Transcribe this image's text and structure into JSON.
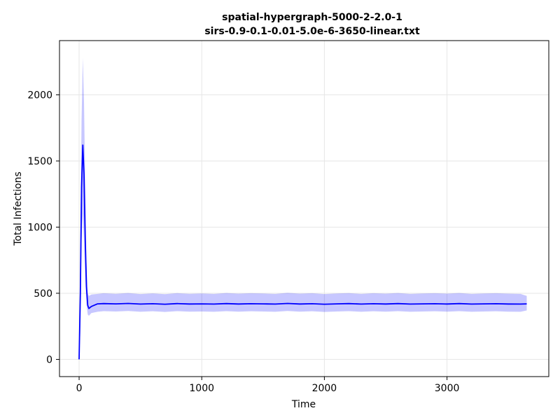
{
  "chart_data": {
    "type": "line",
    "title": "spatial-hypergraph-5000-2-2.0-1",
    "subtitle": "sirs-0.9-0.1-0.01-5.0e-6-3650-linear.txt",
    "xlabel": "Time",
    "ylabel": "Total Infections",
    "xlim": [
      -160,
      3830
    ],
    "ylim": [
      -130,
      2410
    ],
    "xticks": [
      0,
      1000,
      2000,
      3000
    ],
    "yticks": [
      0,
      500,
      1000,
      1500,
      2000
    ],
    "grid": true,
    "legend": "none",
    "colors": {
      "line": "#0000ff",
      "band": "#0000ff",
      "grid": "#e6e6e6"
    },
    "series": [
      {
        "kind": "line",
        "x": [
          0,
          10,
          20,
          30,
          40,
          50,
          60,
          70,
          80,
          100,
          150,
          200,
          300,
          400,
          500,
          600,
          700,
          800,
          900,
          1000,
          1100,
          1200,
          1300,
          1400,
          1500,
          1600,
          1700,
          1800,
          1900,
          2000,
          2100,
          2200,
          2300,
          2400,
          2500,
          2600,
          2700,
          2800,
          2900,
          3000,
          3100,
          3200,
          3300,
          3400,
          3500,
          3600,
          3650
        ],
        "y": [
          0,
          500,
          1300,
          1620,
          1400,
          900,
          550,
          410,
          385,
          400,
          420,
          422,
          420,
          423,
          418,
          421,
          417,
          422,
          419,
          420,
          418,
          422,
          419,
          421,
          420,
          418,
          423,
          419,
          421,
          417,
          420,
          422,
          418,
          421,
          419,
          422,
          418,
          420,
          421,
          419,
          422,
          418,
          420,
          421,
          419,
          418,
          420
        ]
      },
      {
        "kind": "band",
        "x": [
          0,
          10,
          20,
          30,
          40,
          50,
          60,
          70,
          80,
          100,
          150,
          200,
          300,
          400,
          500,
          600,
          700,
          800,
          900,
          1000,
          1100,
          1200,
          1300,
          1400,
          1500,
          1600,
          1700,
          1800,
          1900,
          2000,
          2100,
          2200,
          2300,
          2400,
          2500,
          2600,
          2700,
          2800,
          2900,
          3000,
          3100,
          3200,
          3300,
          3400,
          3500,
          3600,
          3650
        ],
        "lower": [
          0,
          200,
          900,
          1100,
          900,
          600,
          420,
          340,
          330,
          350,
          360,
          365,
          362,
          366,
          360,
          364,
          359,
          365,
          361,
          362,
          360,
          365,
          361,
          364,
          362,
          360,
          366,
          361,
          364,
          359,
          362,
          365,
          360,
          364,
          361,
          365,
          360,
          362,
          364,
          361,
          365,
          360,
          362,
          364,
          361,
          360,
          370
        ],
        "upper": [
          0,
          900,
          1800,
          2280,
          1950,
          1300,
          750,
          500,
          480,
          490,
          495,
          500,
          496,
          502,
          494,
          499,
          493,
          501,
          496,
          498,
          495,
          502,
          497,
          500,
          498,
          495,
          503,
          497,
          500,
          494,
          498,
          501,
          495,
          500,
          497,
          502,
          495,
          498,
          500,
          497,
          502,
          495,
          498,
          500,
          497,
          495,
          480
        ]
      }
    ]
  }
}
